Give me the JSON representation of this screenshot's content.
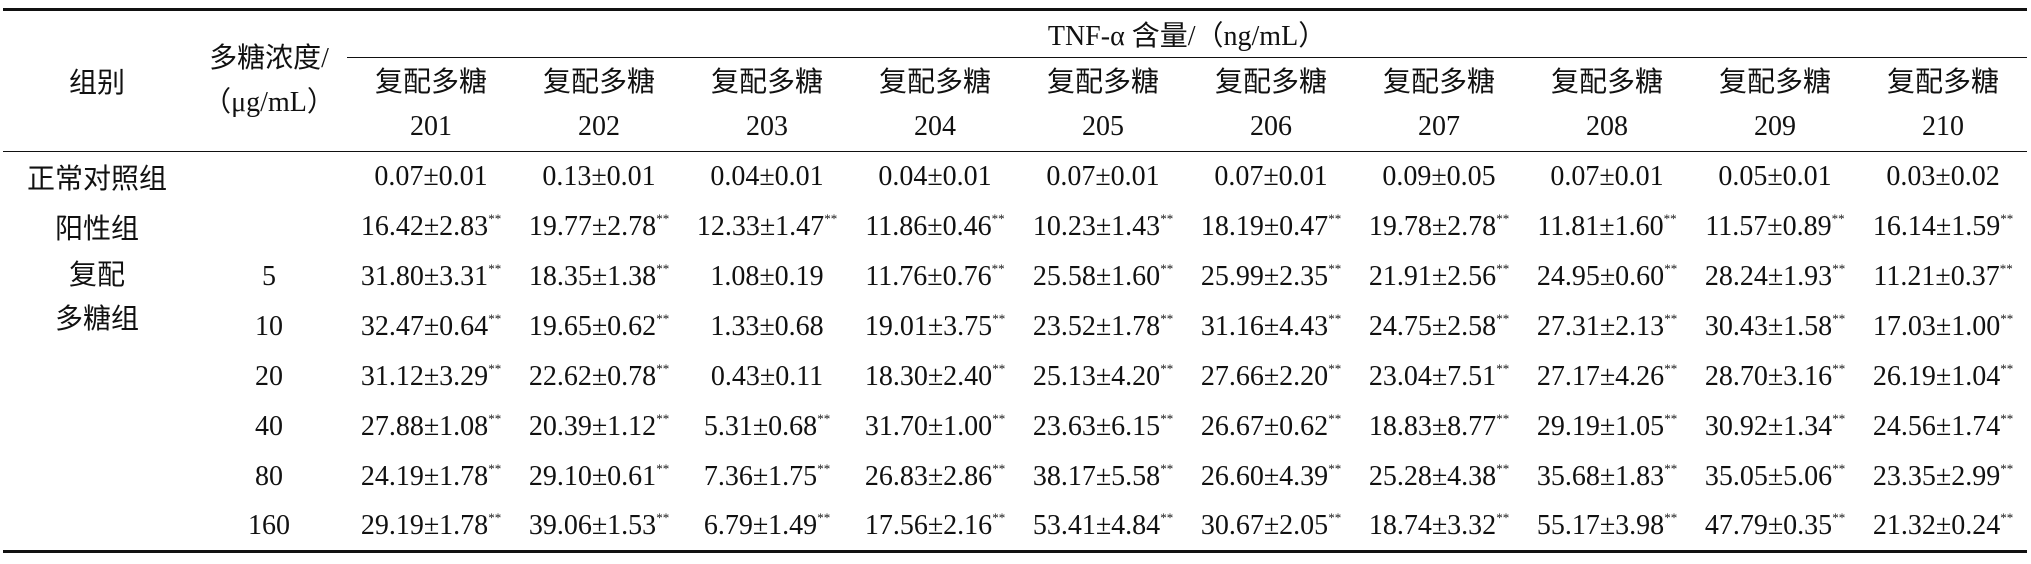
{
  "table": {
    "header": {
      "group": "组别",
      "concentration": [
        "多糖浓度/",
        "（μg/mL）"
      ],
      "measure": "TNF-α 含量/（ng/mL）",
      "columns": [
        [
          "复配多糖",
          "201"
        ],
        [
          "复配多糖",
          "202"
        ],
        [
          "复配多糖",
          "203"
        ],
        [
          "复配多糖",
          "204"
        ],
        [
          "复配多糖",
          "205"
        ],
        [
          "复配多糖",
          "206"
        ],
        [
          "复配多糖",
          "207"
        ],
        [
          "复配多糖",
          "208"
        ],
        [
          "复配多糖",
          "209"
        ],
        [
          "复配多糖",
          "210"
        ]
      ]
    },
    "rows": [
      {
        "group": "正常对照组",
        "cells": [
          {
            "v": "0.07±0.01"
          },
          {
            "v": "0.13±0.01"
          },
          {
            "v": "0.04±0.01"
          },
          {
            "v": "0.04±0.01"
          },
          {
            "v": "0.07±0.01"
          },
          {
            "v": "0.07±0.01"
          },
          {
            "v": "0.09±0.05"
          },
          {
            "v": "0.07±0.01"
          },
          {
            "v": "0.05±0.01"
          },
          {
            "v": "0.03±0.02"
          }
        ]
      },
      {
        "group": "阳性组",
        "cells": [
          {
            "v": "16.42±2.83",
            "sup": "**"
          },
          {
            "v": "19.77±2.78",
            "sup": "**"
          },
          {
            "v": "12.33±1.47",
            "sup": "**"
          },
          {
            "v": "11.86±0.46",
            "sup": "**"
          },
          {
            "v": "10.23±1.43",
            "sup": "**"
          },
          {
            "v": "18.19±0.47",
            "sup": "**"
          },
          {
            "v": "19.78±2.78",
            "sup": "**"
          },
          {
            "v": "11.81±1.60",
            "sup": "**"
          },
          {
            "v": "11.57±0.89",
            "sup": "**"
          },
          {
            "v": "16.14±1.59",
            "sup": "**"
          }
        ]
      }
    ],
    "group_block": {
      "group": [
        "复配",
        "多糖组"
      ],
      "rows": [
        {
          "concentration": "5",
          "cells": [
            {
              "v": "31.80±3.31",
              "sup": "**"
            },
            {
              "v": "18.35±1.38",
              "sup": "**"
            },
            {
              "v": "1.08±0.19"
            },
            {
              "v": "11.76±0.76",
              "sup": "**"
            },
            {
              "v": "25.58±1.60",
              "sup": "**"
            },
            {
              "v": "25.99±2.35",
              "sup": "**"
            },
            {
              "v": "21.91±2.56",
              "sup": "**"
            },
            {
              "v": "24.95±0.60",
              "sup": "**"
            },
            {
              "v": "28.24±1.93",
              "sup": "**"
            },
            {
              "v": "11.21±0.37",
              "sup": "**"
            }
          ]
        },
        {
          "concentration": "10",
          "cells": [
            {
              "v": "32.47±0.64",
              "sup": "**"
            },
            {
              "v": "19.65±0.62",
              "sup": "**"
            },
            {
              "v": "1.33±0.68"
            },
            {
              "v": "19.01±3.75",
              "sup": "**"
            },
            {
              "v": "23.52±1.78",
              "sup": "**"
            },
            {
              "v": "31.16±4.43",
              "sup": "**"
            },
            {
              "v": "24.75±2.58",
              "sup": "**"
            },
            {
              "v": "27.31±2.13",
              "sup": "**"
            },
            {
              "v": "30.43±1.58",
              "sup": "**"
            },
            {
              "v": "17.03±1.00",
              "sup": "**"
            }
          ]
        },
        {
          "concentration": "20",
          "cells": [
            {
              "v": "31.12±3.29",
              "sup": "**"
            },
            {
              "v": "22.62±0.78",
              "sup": "**"
            },
            {
              "v": "0.43±0.11"
            },
            {
              "v": "18.30±2.40",
              "sup": "**"
            },
            {
              "v": "25.13±4.20",
              "sup": "**"
            },
            {
              "v": "27.66±2.20",
              "sup": "**"
            },
            {
              "v": "23.04±7.51",
              "sup": "**"
            },
            {
              "v": "27.17±4.26",
              "sup": "**"
            },
            {
              "v": "28.70±3.16",
              "sup": "**"
            },
            {
              "v": "26.19±1.04",
              "sup": "**"
            }
          ]
        },
        {
          "concentration": "40",
          "cells": [
            {
              "v": "27.88±1.08",
              "sup": "**"
            },
            {
              "v": "20.39±1.12",
              "sup": "**"
            },
            {
              "v": "5.31±0.68",
              "sup": "**"
            },
            {
              "v": "31.70±1.00",
              "sup": "**"
            },
            {
              "v": "23.63±6.15",
              "sup": "**"
            },
            {
              "v": "26.67±0.62",
              "sup": "**"
            },
            {
              "v": "18.83±8.77",
              "sup": "**"
            },
            {
              "v": "29.19±1.05",
              "sup": "**"
            },
            {
              "v": "30.92±1.34",
              "sup": "**"
            },
            {
              "v": "24.56±1.74",
              "sup": "**"
            }
          ]
        },
        {
          "concentration": "80",
          "cells": [
            {
              "v": "24.19±1.78",
              "sup": "**"
            },
            {
              "v": "29.10±0.61",
              "sup": "**"
            },
            {
              "v": "7.36±1.75",
              "sup": "**"
            },
            {
              "v": "26.83±2.86",
              "sup": "**"
            },
            {
              "v": "38.17±5.58",
              "sup": "**"
            },
            {
              "v": "26.60±4.39",
              "sup": "**"
            },
            {
              "v": "25.28±4.38",
              "sup": "**"
            },
            {
              "v": "35.68±1.83",
              "sup": "**"
            },
            {
              "v": "35.05±5.06",
              "sup": "**"
            },
            {
              "v": "23.35±2.99",
              "sup": "**"
            }
          ]
        },
        {
          "concentration": "160",
          "cells": [
            {
              "v": "29.19±1.78",
              "sup": "**"
            },
            {
              "v": "39.06±1.53",
              "sup": "**"
            },
            {
              "v": "6.79±1.49",
              "sup": "**"
            },
            {
              "v": "17.56±2.16",
              "sup": "**"
            },
            {
              "v": "53.41±4.84",
              "sup": "**"
            },
            {
              "v": "30.67±2.05",
              "sup": "**"
            },
            {
              "v": "18.74±3.32",
              "sup": "**"
            },
            {
              "v": "55.17±3.98",
              "sup": "**"
            },
            {
              "v": "47.79±0.35",
              "sup": "**"
            },
            {
              "v": "21.32±0.24",
              "sup": "**"
            }
          ]
        }
      ]
    }
  }
}
